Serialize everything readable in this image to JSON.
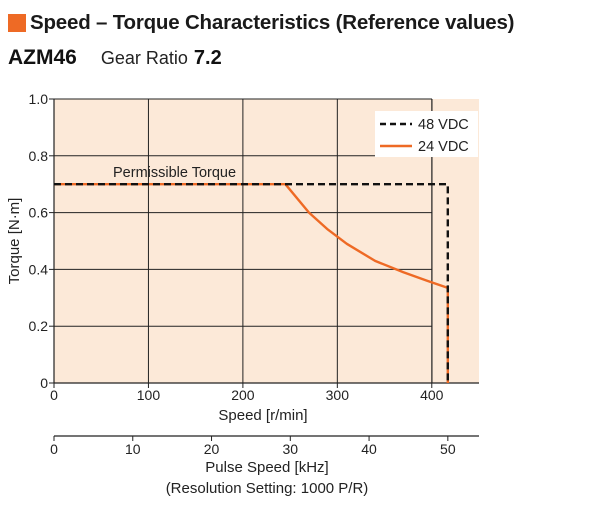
{
  "header": {
    "title": "Speed – Torque Characteristics (Reference values)",
    "accent_color": "#ee6a25"
  },
  "model_line": {
    "model": "AZM46",
    "gear_ratio_label": "Gear Ratio",
    "gear_ratio_value": "7.2"
  },
  "chart_data": {
    "type": "line",
    "xlabel": "Speed [r/min]",
    "ylabel": "Torque [N·m]",
    "xlim": [
      0,
      450
    ],
    "ylim": [
      0,
      1.0
    ],
    "x_ticks": [
      "0",
      "100",
      "200",
      "300",
      "400"
    ],
    "y_ticks": [
      "0",
      "0.2",
      "0.4",
      "0.6",
      "0.8",
      "1.0"
    ],
    "grid": true,
    "legend_position": "top-right",
    "plot_background": "#fce9d8",
    "annotation": "Permissible Torque",
    "series": [
      {
        "name": "48 VDC",
        "style": "dashed",
        "color": "#111111",
        "points": [
          [
            0,
            0.7
          ],
          [
            417,
            0.7
          ],
          [
            417,
            0
          ]
        ]
      },
      {
        "name": "24 VDC",
        "style": "solid",
        "color": "#ee6a25",
        "points": [
          [
            0,
            0.7
          ],
          [
            245,
            0.7
          ],
          [
            270,
            0.6
          ],
          [
            290,
            0.54
          ],
          [
            310,
            0.49
          ],
          [
            340,
            0.43
          ],
          [
            370,
            0.39
          ],
          [
            395,
            0.36
          ],
          [
            417,
            0.335
          ],
          [
            417,
            0
          ]
        ]
      }
    ],
    "secondary_axis": {
      "label": "Pulse Speed [kHz]",
      "note": "(Resolution Setting: 1000 P/R)",
      "ticks": [
        "0",
        "10",
        "20",
        "30",
        "40",
        "50"
      ],
      "values": [
        0,
        10,
        20,
        30,
        40,
        50
      ]
    }
  }
}
